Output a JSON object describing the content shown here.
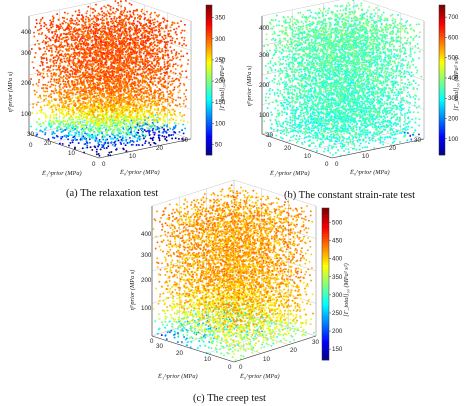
{
  "chart_data": [
    {
      "type": "scatter",
      "caption": "(a) The relaxation test",
      "x_label": "Ē₁^prior (MPa)",
      "y_label": "Ē₀^prior (MPa)",
      "z_label": "η̄^prior (MPa s)",
      "colorbar_label": "[Γ_total]₅₀ (MPa² s²)",
      "x_ticks": [
        "0",
        "10",
        "20",
        "30"
      ],
      "y_ticks": [
        "0",
        "10",
        "20",
        "30"
      ],
      "z_ticks": [
        "0",
        "100",
        "200",
        "300",
        "400"
      ],
      "colorbar_ticks": [
        "50",
        "100",
        "150",
        "200",
        "250",
        "300",
        "350"
      ],
      "colorbar_range": [
        25,
        380
      ],
      "xlim": [
        0,
        30
      ],
      "ylim": [
        0,
        30
      ],
      "zlim": [
        0,
        400
      ],
      "grid": true,
      "seed": 11,
      "mode": "relax"
    },
    {
      "type": "scatter",
      "caption": "(b) The constant strain-rate test",
      "x_label": "Ē₁^prior (MPa)",
      "y_label": "Ē₀^prior (MPa)",
      "z_label": "η̄^prior (MPa s)",
      "colorbar_label": "[Γ_total]₅₀ (MPa² s²)",
      "x_ticks": [
        "0",
        "10",
        "20",
        "30"
      ],
      "y_ticks": [
        "0",
        "10",
        "20",
        "30"
      ],
      "z_ticks": [
        "0",
        "100",
        "200",
        "300",
        "400"
      ],
      "colorbar_ticks": [
        "100",
        "200",
        "300",
        "400",
        "500",
        "600",
        "700"
      ],
      "colorbar_range": [
        20,
        760
      ],
      "xlim": [
        0,
        30
      ],
      "ylim": [
        0,
        30
      ],
      "zlim": [
        0,
        400
      ],
      "grid": true,
      "seed": 23,
      "mode": "strain"
    },
    {
      "type": "scatter",
      "caption": "(c) The creep test",
      "x_label": "Ē₁^prior (MPa)",
      "y_label": "Ē₀^prior (MPa)",
      "z_label": "η̄^prior (MPa s)",
      "colorbar_label": "[Γ_total]₅₀ (MPa² s²)",
      "x_ticks": [
        "0",
        "10",
        "20",
        "30"
      ],
      "y_ticks": [
        "0",
        "10",
        "20",
        "30"
      ],
      "z_ticks": [
        "0",
        "100",
        "200",
        "300",
        "400"
      ],
      "colorbar_ticks": [
        "150",
        "200",
        "250",
        "300",
        "350",
        "400",
        "450",
        "500"
      ],
      "colorbar_range": [
        120,
        540
      ],
      "xlim": [
        0,
        30
      ],
      "ylim": [
        0,
        30
      ],
      "zlim": [
        0,
        400
      ],
      "grid": true,
      "seed": 37,
      "mode": "creep"
    }
  ]
}
